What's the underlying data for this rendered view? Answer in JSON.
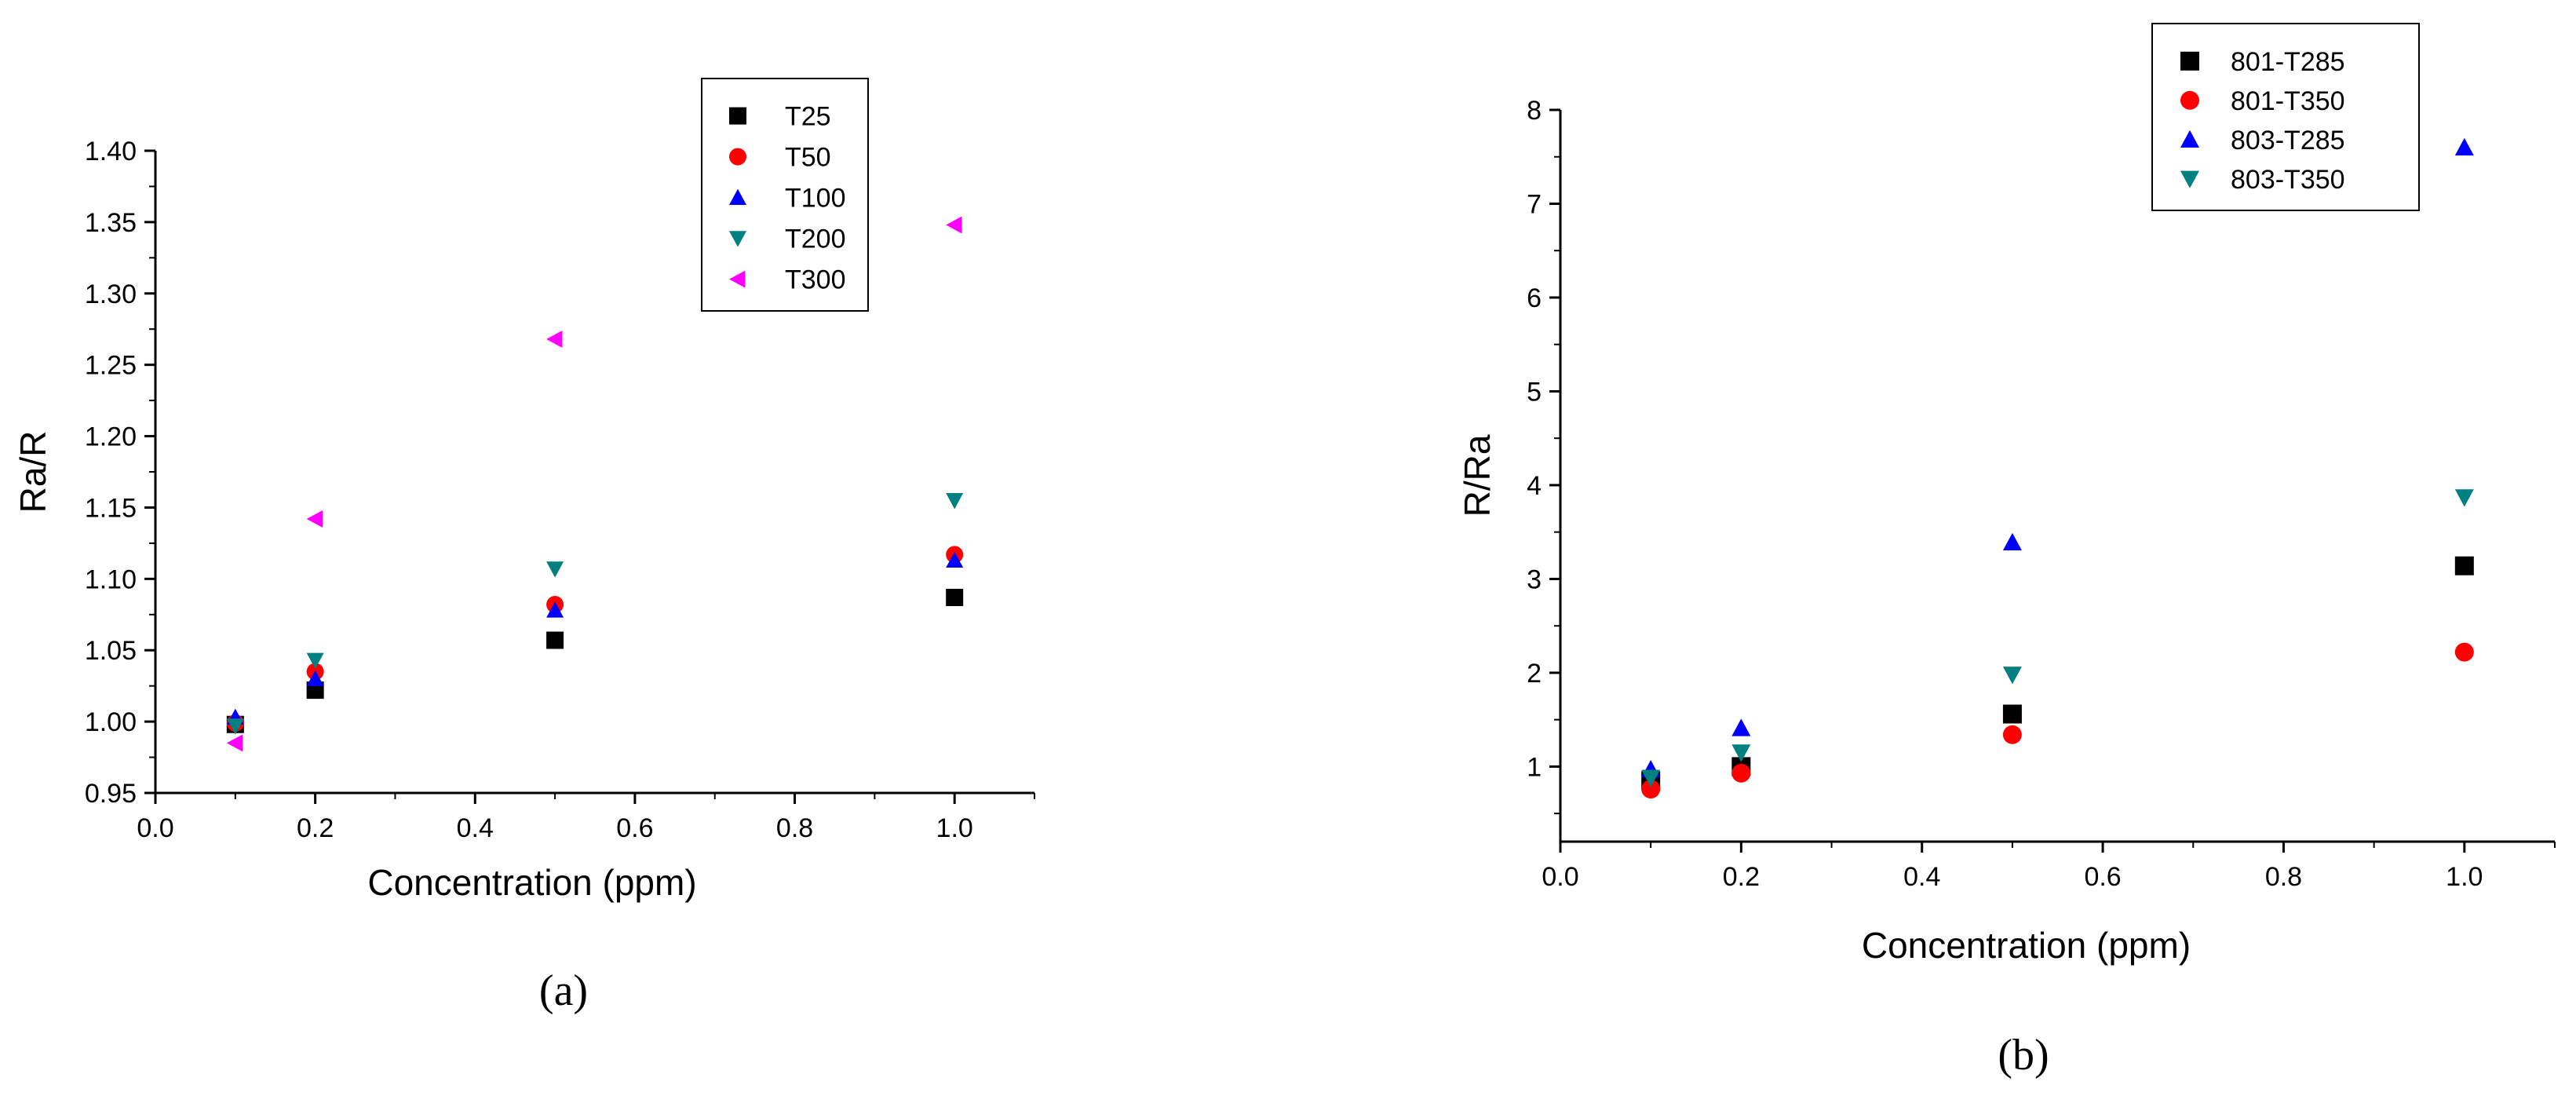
{
  "chart_data": [
    {
      "type": "scatter",
      "panel": "a",
      "caption": "(a)",
      "xlabel": "Concentration (ppm)",
      "ylabel": "Ra/R",
      "xlim": [
        0.0,
        1.1
      ],
      "ylim": [
        0.95,
        1.4
      ],
      "xticks": [
        "0.0",
        "0.2",
        "0.4",
        "0.6",
        "0.8",
        "1.0"
      ],
      "yticks": [
        "0.95",
        "1.00",
        "1.05",
        "1.10",
        "1.15",
        "1.20",
        "1.25",
        "1.30",
        "1.35",
        "1.40"
      ],
      "legend_position": "top-right",
      "grid": false,
      "series": [
        {
          "name": "T25",
          "marker": "square",
          "color": "#000000",
          "points": [
            [
              0.1,
              0.998
            ],
            [
              0.2,
              1.022
            ],
            [
              0.5,
              1.057
            ],
            [
              1.0,
              1.087
            ]
          ]
        },
        {
          "name": "T50",
          "marker": "circle",
          "color": "#ff0000",
          "points": [
            [
              0.1,
              0.999
            ],
            [
              0.2,
              1.035
            ],
            [
              0.5,
              1.082
            ],
            [
              1.0,
              1.117
            ]
          ]
        },
        {
          "name": "T100",
          "marker": "triangle-up",
          "color": "#0000ff",
          "points": [
            [
              0.1,
              1.003
            ],
            [
              0.2,
              1.03
            ],
            [
              0.5,
              1.078
            ],
            [
              1.0,
              1.113
            ]
          ]
        },
        {
          "name": "T200",
          "marker": "triangle-down",
          "color": "#008080",
          "points": [
            [
              0.1,
              0.997
            ],
            [
              0.2,
              1.043
            ],
            [
              0.5,
              1.107
            ],
            [
              1.0,
              1.155
            ]
          ]
        },
        {
          "name": "T300",
          "marker": "triangle-left",
          "color": "#ff00ff",
          "points": [
            [
              0.1,
              0.985
            ],
            [
              0.2,
              1.142
            ],
            [
              0.5,
              1.268
            ],
            [
              1.0,
              1.348
            ]
          ]
        }
      ]
    },
    {
      "type": "scatter",
      "panel": "b",
      "caption": "(b)",
      "xlabel": "Concentration (ppm)",
      "ylabel": "R/Ra",
      "xlim": [
        0.0,
        1.1
      ],
      "ylim": [
        0.2,
        8.0
      ],
      "xticks": [
        "0.0",
        "0.2",
        "0.4",
        "0.6",
        "0.8",
        "1.0"
      ],
      "yticks": [
        "1",
        "2",
        "3",
        "4",
        "5",
        "6",
        "7",
        "8"
      ],
      "legend_position": "top-right",
      "grid": false,
      "series": [
        {
          "name": "801-T285",
          "marker": "square",
          "color": "#000000",
          "points": [
            [
              0.1,
              0.85
            ],
            [
              0.2,
              1.0
            ],
            [
              0.5,
              1.56
            ],
            [
              1.0,
              3.14
            ]
          ]
        },
        {
          "name": "801-T350",
          "marker": "circle",
          "color": "#ff0000",
          "points": [
            [
              0.1,
              0.76
            ],
            [
              0.2,
              0.93
            ],
            [
              0.5,
              1.34
            ],
            [
              1.0,
              2.22
            ]
          ]
        },
        {
          "name": "803-T285",
          "marker": "triangle-up",
          "color": "#0000ff",
          "points": [
            [
              0.1,
              0.97
            ],
            [
              0.2,
              1.41
            ],
            [
              0.5,
              3.39
            ],
            [
              1.0,
              7.6
            ]
          ]
        },
        {
          "name": "803-T350",
          "marker": "triangle-down",
          "color": "#008080",
          "points": [
            [
              0.1,
              0.88
            ],
            [
              0.2,
              1.15
            ],
            [
              0.5,
              1.98
            ],
            [
              1.0,
              3.87
            ]
          ]
        }
      ]
    }
  ]
}
